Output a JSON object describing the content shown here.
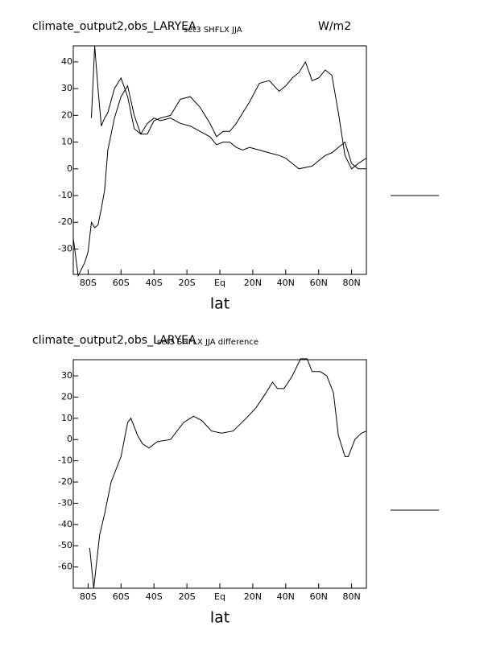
{
  "chart_data": [
    {
      "type": "line",
      "title": "climate_output2,obs_LARYEA",
      "subtitle": "set3 SHFLX JJA",
      "annotation": "W/m2",
      "xlabel": "lat",
      "x": [
        -89,
        -86,
        -82,
        -80,
        -78,
        -76,
        -74,
        -72,
        -70,
        -68,
        -64,
        -60,
        -56,
        -52,
        -48,
        -44,
        -40,
        -36,
        -30,
        -24,
        -18,
        -12,
        -6,
        -2,
        2,
        6,
        10,
        14,
        18,
        24,
        30,
        36,
        40,
        44,
        48,
        52,
        56,
        60,
        64,
        68,
        72,
        76,
        80,
        84,
        89
      ],
      "series": [
        {
          "color": "#000000",
          "values": [
            null,
            null,
            null,
            null,
            19,
            46,
            30,
            16,
            19,
            21,
            30,
            34,
            27,
            15,
            13,
            17,
            19,
            18,
            19,
            17,
            16,
            14,
            12,
            9,
            10,
            10,
            8,
            7,
            8,
            7,
            6,
            5,
            4,
            2,
            0,
            0.5,
            1,
            3,
            5,
            6,
            8,
            10,
            2,
            0,
            0
          ]
        },
        {
          "color": "#000000",
          "values": [
            -26,
            -40,
            -35,
            -31,
            -20,
            -22,
            -21,
            -15,
            -8,
            7,
            19,
            27,
            31,
            20,
            13,
            13,
            18,
            19,
            20,
            26,
            27,
            23,
            17,
            12,
            14,
            14,
            17,
            21,
            25,
            32,
            33,
            29,
            31,
            34,
            36,
            40,
            33,
            34,
            37,
            35,
            21,
            5,
            0,
            2,
            4
          ]
        }
      ],
      "xlim": [
        -89,
        89
      ],
      "ylim": [
        -39.5,
        46
      ],
      "xticks": [
        {
          "value": -80,
          "label": "80S"
        },
        {
          "value": -60,
          "label": "60S"
        },
        {
          "value": -40,
          "label": "40S"
        },
        {
          "value": -20,
          "label": "20S"
        },
        {
          "value": 0,
          "label": "Eq"
        },
        {
          "value": 20,
          "label": "20N"
        },
        {
          "value": 40,
          "label": "40N"
        },
        {
          "value": 60,
          "label": "60N"
        },
        {
          "value": 80,
          "label": "80N"
        }
      ],
      "yticks": [
        -30,
        -20,
        -10,
        0,
        10,
        20,
        30,
        40
      ]
    },
    {
      "type": "line",
      "title": "climate_output2,obs_LARYEA",
      "subtitle": "set3 SHFLX JJA difference",
      "xlabel": "lat",
      "x": [
        -79,
        -76.6,
        -73,
        -70,
        -66,
        -60,
        -56,
        -54,
        -50,
        -47,
        -43,
        -38,
        -30,
        -22,
        -16,
        -11,
        -5,
        1,
        8,
        16,
        22,
        28,
        32,
        35,
        39,
        44,
        49,
        53,
        56,
        61,
        65,
        69,
        72,
        76,
        78,
        82,
        86,
        89
      ],
      "series": [
        {
          "color": "#000000",
          "values": [
            -51,
            -70,
            -45,
            -35,
            -20,
            -8,
            8,
            10,
            2,
            -2,
            -4,
            -1,
            0,
            8,
            11,
            9,
            4,
            3,
            4,
            10,
            15,
            22,
            27,
            24,
            24,
            30,
            38,
            38,
            32,
            32,
            30,
            22,
            2,
            -8,
            -8,
            0,
            3,
            4
          ]
        }
      ],
      "xlim": [
        -89,
        89
      ],
      "ylim": [
        -70,
        37.6
      ],
      "xticks": [
        {
          "value": -80,
          "label": "80S"
        },
        {
          "value": -60,
          "label": "60S"
        },
        {
          "value": -40,
          "label": "40S"
        },
        {
          "value": -20,
          "label": "20S"
        },
        {
          "value": 0,
          "label": "Eq"
        },
        {
          "value": 20,
          "label": "20N"
        },
        {
          "value": 40,
          "label": "40N"
        },
        {
          "value": 60,
          "label": "60N"
        },
        {
          "value": 80,
          "label": "80N"
        }
      ],
      "yticks": [
        -60,
        -50,
        -40,
        -30,
        -20,
        -10,
        0,
        10,
        20,
        30
      ]
    }
  ]
}
